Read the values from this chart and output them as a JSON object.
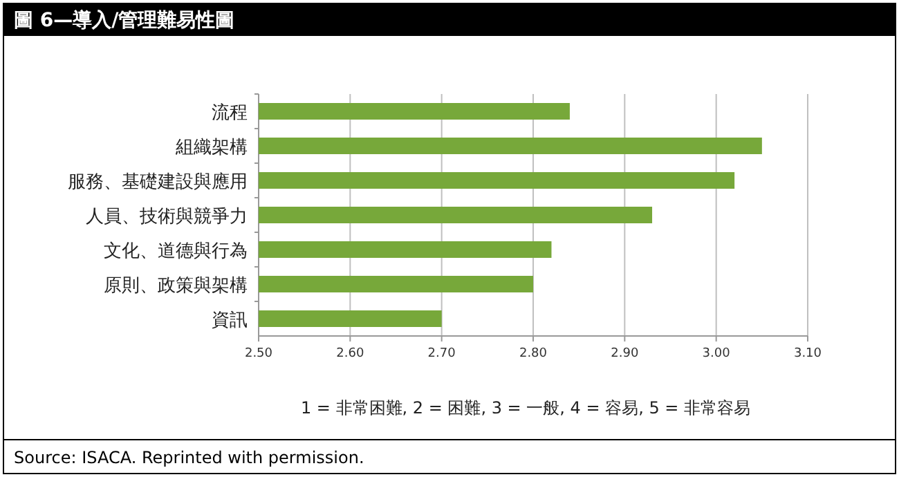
{
  "chart_data": {
    "type": "bar",
    "orientation": "horizontal",
    "title": "圖 6—導入/管理難易性圖",
    "categories": [
      "流程",
      "組織架構",
      "服務、基礎建設與應用",
      "人員、技術與競爭力",
      "文化、道德與行為",
      "原則、政策與架構",
      "資訊"
    ],
    "values": [
      2.84,
      3.05,
      3.02,
      2.93,
      2.82,
      2.8,
      2.7
    ],
    "color": "#77a83a",
    "xlim": [
      2.5,
      3.1
    ],
    "xticks": [
      {
        "value": 2.5,
        "label": "2.50"
      },
      {
        "value": 2.6,
        "label": "2.60"
      },
      {
        "value": 2.7,
        "label": "2.70"
      },
      {
        "value": 2.8,
        "label": "2.80"
      },
      {
        "value": 2.9,
        "label": "2.90"
      },
      {
        "value": 3.0,
        "label": "3.00"
      },
      {
        "value": 3.1,
        "label": "3.10"
      }
    ],
    "grid": "x",
    "annotations": [
      "1 = 非常困難, 2 = 困難, 3 = 一般, 4 = 容易, 5 = 非常容易",
      "Source:  ISACA. Reprinted with permission."
    ]
  }
}
